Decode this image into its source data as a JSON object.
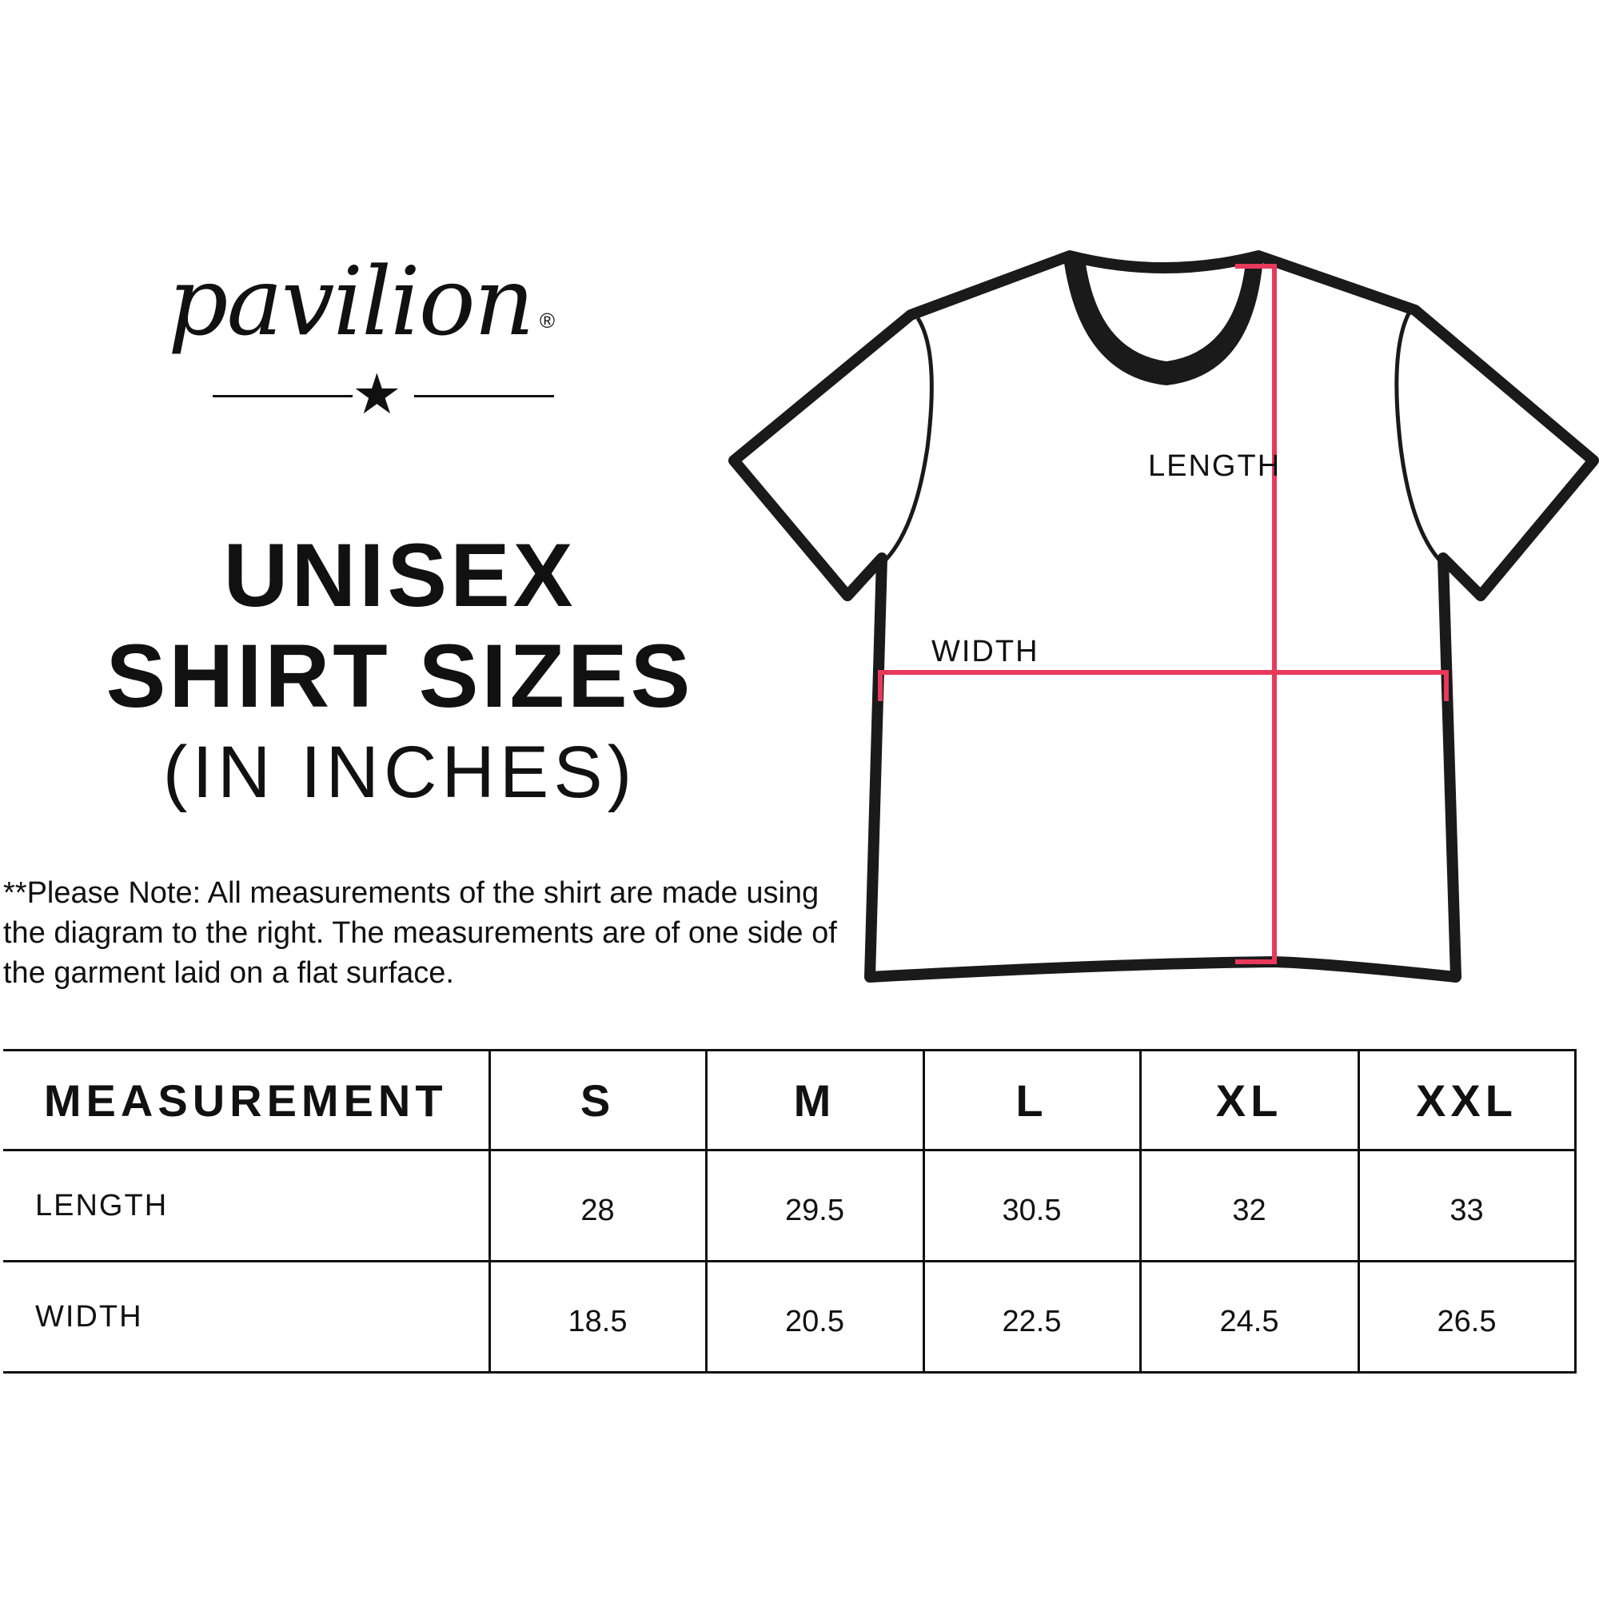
{
  "logo": {
    "text": "pavilion",
    "registered": "®"
  },
  "title": {
    "line1": "UNISEX",
    "line2": "SHIRT SIZES",
    "line3": "(IN INCHES)"
  },
  "note": "**Please Note:  All measurements of the shirt are made using the diagram to the right.  The measurements are of one side of the garment laid on a flat surface.",
  "diagram": {
    "length_label": "LENGTH",
    "width_label": "WIDTH",
    "measure_color": "#e8395b",
    "outline_color": "#1a1a1a"
  },
  "table": {
    "headers": [
      "MEASUREMENT",
      "S",
      "M",
      "L",
      "XL",
      "XXL"
    ],
    "rows": [
      {
        "label": "LENGTH",
        "values": [
          "28",
          "29.5",
          "30.5",
          "32",
          "33"
        ]
      },
      {
        "label": "WIDTH",
        "values": [
          "18.5",
          "20.5",
          "22.5",
          "24.5",
          "26.5"
        ]
      }
    ]
  }
}
